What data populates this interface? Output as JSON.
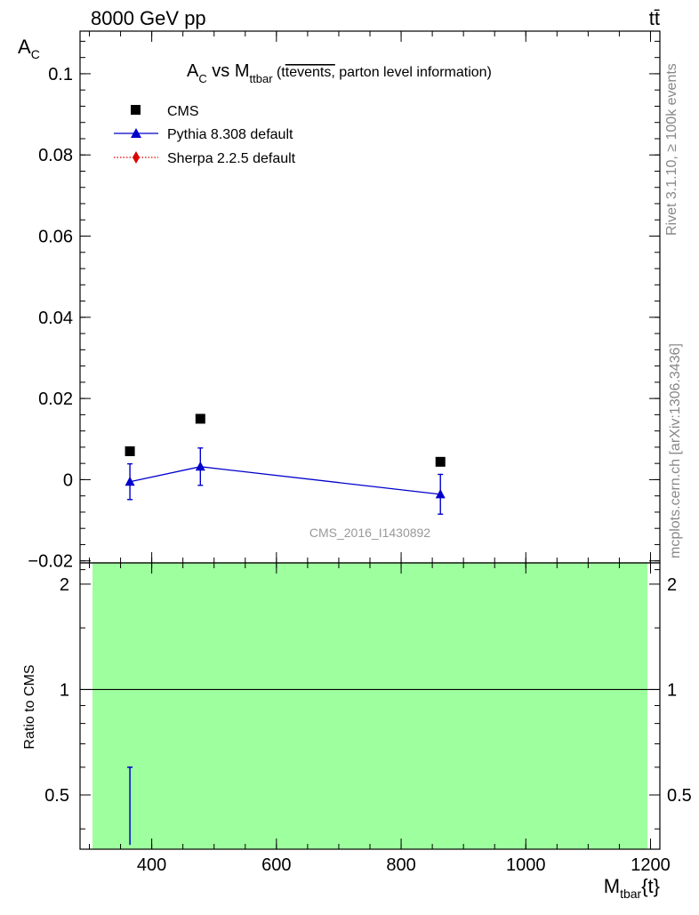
{
  "header": {
    "energy_label": "8000 GeV pp",
    "process_label": "tt̄"
  },
  "side_labels": {
    "rivet": "Rivet 3.1.10, ≥ 100k events",
    "mcplots": "mcplots.cern.ch [arXiv:1306.3436]"
  },
  "chart_data": [
    {
      "type": "scatter",
      "title": {
        "main": "A",
        "main_sub": "C",
        "vs": " vs M",
        "vs_sub": "ttbar",
        "paren_open": " (t",
        "overline": "tevents,",
        "paren_rest": " parton level information)"
      },
      "ylabel": {
        "main": "A",
        "sub": "C"
      },
      "xlim": [
        285,
        1215
      ],
      "ylim": [
        -0.0205,
        0.1105
      ],
      "x_ticks": [
        400,
        600,
        800,
        1000,
        1200
      ],
      "y_ticks": [
        {
          "value": -0.02,
          "label": "−0.02"
        },
        {
          "value": 0,
          "label": "0"
        },
        {
          "value": 0.02,
          "label": "0.02"
        },
        {
          "value": 0.04,
          "label": "0.04"
        },
        {
          "value": 0.06,
          "label": "0.06"
        },
        {
          "value": 0.08,
          "label": "0.08"
        },
        {
          "value": 0.1,
          "label": "0.1"
        }
      ],
      "watermark": "CMS_2016_I1430892",
      "legend_position": "top-left",
      "series": [
        {
          "name": "CMS",
          "color": "#000000",
          "marker": "square",
          "points": [
            {
              "x": 365,
              "y": 0.007
            },
            {
              "x": 478,
              "y": 0.015
            },
            {
              "x": 863,
              "y": 0.0044
            }
          ]
        },
        {
          "name": "Pythia 8.308 default",
          "color": "#0000cc",
          "marker": "triangle",
          "line": "solid",
          "points": [
            {
              "x": 365,
              "y": -0.0005,
              "err": 0.0044
            },
            {
              "x": 478,
              "y": 0.0032,
              "err": 0.0046
            },
            {
              "x": 863,
              "y": -0.0036,
              "err": 0.0049
            }
          ]
        },
        {
          "name": "Sherpa 2.2.5 default",
          "color": "#dd0000",
          "marker": "diamond",
          "line": "dotted",
          "points": []
        }
      ]
    },
    {
      "type": "scatter",
      "ylabel": "Ratio to CMS",
      "xlabel": {
        "main": "M",
        "sub": "tbar",
        "rest": "{t}"
      },
      "xlim": [
        285,
        1215
      ],
      "ylim": [
        0.35,
        2.3
      ],
      "x_ticks": [
        {
          "value": 400,
          "label": "400"
        },
        {
          "value": 600,
          "label": "600"
        },
        {
          "value": 800,
          "label": "800"
        },
        {
          "value": 1000,
          "label": "1000"
        },
        {
          "value": 1200,
          "label": "1200"
        }
      ],
      "y_ticks": [
        {
          "value": 0.5,
          "label": "0.5"
        },
        {
          "value": 1,
          "label": "1"
        },
        {
          "value": 2,
          "label": "2"
        }
      ],
      "band": {
        "xmin": 305,
        "xmax": 1195,
        "color": "#9eff9e"
      },
      "reference_line": 1,
      "pythia_error_bar": {
        "x": 365,
        "ylow": 0.36,
        "yhigh": 0.6,
        "color": "#0000cc"
      }
    }
  ]
}
